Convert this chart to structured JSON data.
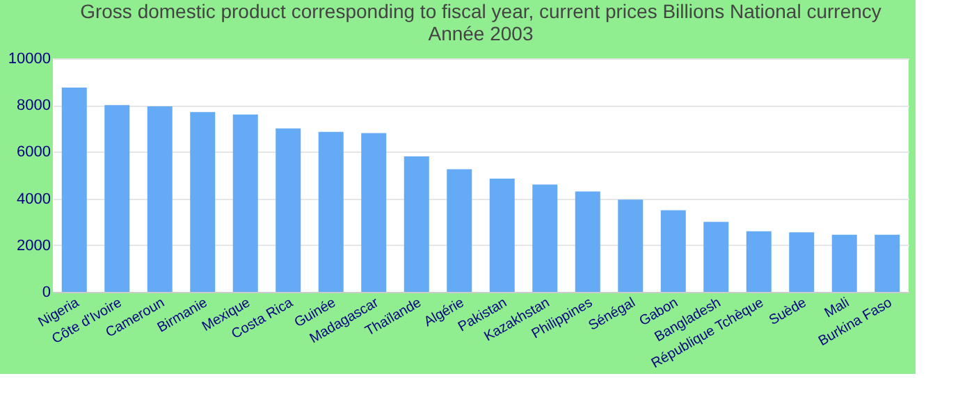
{
  "chart_data": {
    "type": "bar",
    "title": [
      "Gross domestic product corresponding to fiscal year, current prices Billions National currency",
      "Année 2003"
    ],
    "categories": [
      "Nigeria",
      "Côte d'Ivoire",
      "Cameroun",
      "Birmanie",
      "Mexique",
      "Costa Rica",
      "Guinée",
      "Madagascar",
      "Thaïlande",
      "Algérie",
      "Pakistan",
      "Kazakhstan",
      "Philippines",
      "Sénégal",
      "Gabon",
      "Bangladesh",
      "République Tchèque",
      "Suède",
      "Mali",
      "Burkina Faso"
    ],
    "values": [
      8750,
      8000,
      7950,
      7700,
      7600,
      7000,
      6850,
      6800,
      5800,
      5250,
      4850,
      4600,
      4300,
      3950,
      3500,
      3000,
      2600,
      2550,
      2450,
      2450
    ],
    "color": "#64aaf5",
    "ylim": [
      0,
      10000
    ],
    "yticks": [
      0,
      2000,
      4000,
      6000,
      8000,
      10000
    ],
    "grid": "y"
  }
}
